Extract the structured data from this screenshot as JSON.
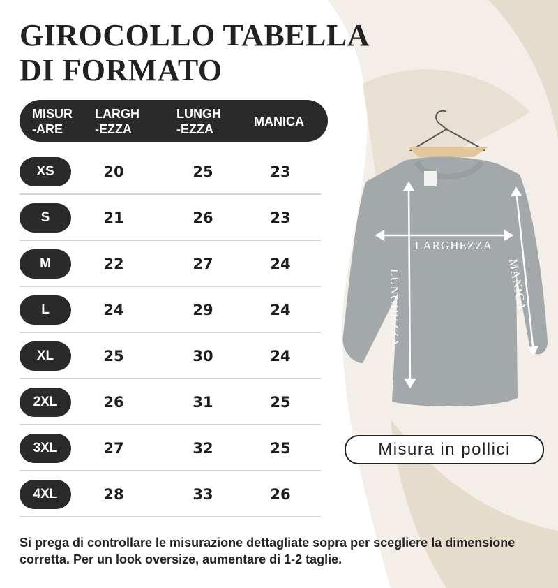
{
  "title_lines": [
    "GIROCOLLO TABELLA",
    "DI FORMATO"
  ],
  "table": {
    "headers": [
      [
        "MISUR",
        "-ARE"
      ],
      [
        "LARGH",
        "-EZZA"
      ],
      [
        "LUNGH",
        "-EZZA"
      ],
      [
        "MANICA"
      ]
    ],
    "rows": [
      {
        "size": "XS",
        "values": [
          "20",
          "25",
          "23"
        ]
      },
      {
        "size": "S",
        "values": [
          "21",
          "26",
          "23"
        ]
      },
      {
        "size": "M",
        "values": [
          "22",
          "27",
          "24"
        ]
      },
      {
        "size": "L",
        "values": [
          "24",
          "29",
          "24"
        ]
      },
      {
        "size": "XL",
        "values": [
          "25",
          "30",
          "24"
        ]
      },
      {
        "size": "2XL",
        "values": [
          "26",
          "31",
          "25"
        ]
      },
      {
        "size": "3XL",
        "values": [
          "27",
          "32",
          "25"
        ]
      },
      {
        "size": "4XL",
        "values": [
          "28",
          "33",
          "26"
        ]
      }
    ]
  },
  "diagram": {
    "width_label": "LARGHEZZA",
    "length_label": "LUNGHEZZA",
    "sleeve_label": "MANICA"
  },
  "unit_label": "Misura in pollici",
  "note": "Si prega di controllare le misurazione dettagliate sopra per scegliere la dimensione corretta. Per un look oversize, aumentare di 1-2 taglie.",
  "colors": {
    "dark": "#2a2a2a",
    "sweater": "#a3a8ab",
    "background_leaf": "#ede6da"
  }
}
